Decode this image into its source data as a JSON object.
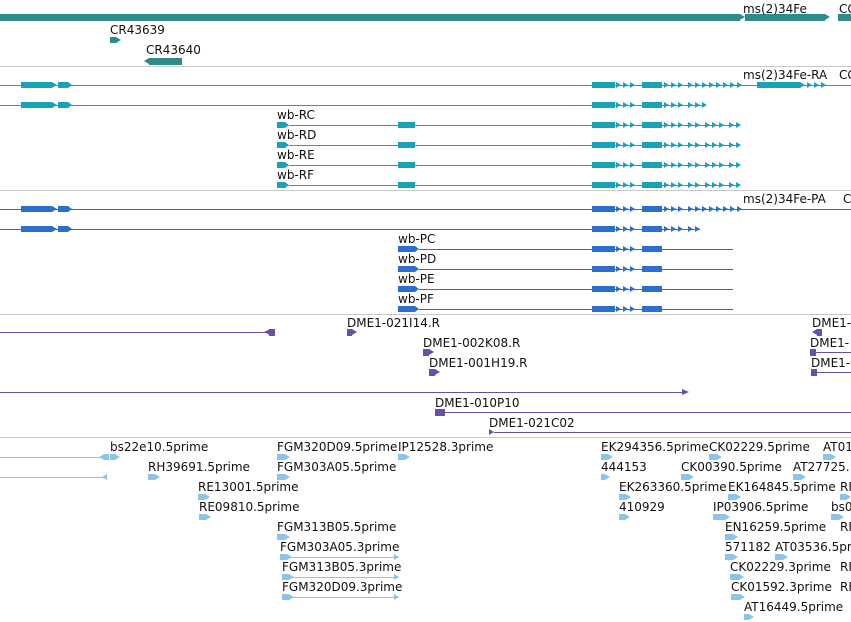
{
  "colors": {
    "gene": "#2e8b87",
    "transcript": "#17a2b8",
    "cds": "#2b6fce",
    "clone": "#6a4fa8",
    "est": "#8cc3e8",
    "separator": "#c8c8c8"
  },
  "tracks": {
    "genes": {
      "ms34fe": "ms(2)34Fe",
      "right_cut": "CG",
      "cr43639": "CR43639",
      "cr43640": "CR43640"
    },
    "transcripts": {
      "ms34fe_ra": "ms(2)34Fe-RA",
      "right_cut": "CG",
      "wb_rc": "wb-RC",
      "wb_rd": "wb-RD",
      "wb_re": "wb-RE",
      "wb_rf": "wb-RF"
    },
    "proteins": {
      "ms34fe_pa": "ms(2)34Fe-PA",
      "right_cut": "C",
      "wb_pc": "wb-PC",
      "wb_pd": "wb-PD",
      "wb_pe": "wb-PE",
      "wb_pf": "wb-PF"
    },
    "clones": {
      "c1": "DME1-021I14.R",
      "c2": "DME1-002K08.R",
      "c3": "DME1-001H19.R",
      "c4": "DME1-010P10",
      "c5": "DME1-021C02",
      "r1": "DME1-",
      "r2": "DME1-",
      "r3": "DME1-"
    },
    "ests": {
      "e1": "bs22e10.5prime",
      "e2": "RH39691.5prime",
      "e3": "RE13001.5prime",
      "e4": "RE09810.5prime",
      "e5": "FGM320D09.5prime",
      "e6": "IP12528.3prime",
      "e7": "FGM303A05.5prime",
      "e8": "FGM313B05.5prime",
      "e9": "FGM303A05.3prime",
      "e10": "FGM313B05.3prime",
      "e11": "FGM320D09.3prime",
      "e12": "EK294356.5prime",
      "e13": "444153",
      "e14": "EK263360.5prime",
      "e15": "410929",
      "e16": "CK02229.5prime",
      "e17": "CK00390.5prime",
      "e18": "EK164845.5prime",
      "e19": "IP03906.5prime",
      "e20": "EN16259.5prime",
      "e21": "571182",
      "e22": "AT03536.5prime",
      "e23": "CK02229.3prime",
      "e24": "CK01592.3prime",
      "e25": "AT16449.5prime",
      "e26": "AT01",
      "e27": "AT27725.",
      "e28": "RF",
      "e29": "bs0",
      "e30": "RF",
      "e31": "RF",
      "e32": "RF"
    }
  }
}
